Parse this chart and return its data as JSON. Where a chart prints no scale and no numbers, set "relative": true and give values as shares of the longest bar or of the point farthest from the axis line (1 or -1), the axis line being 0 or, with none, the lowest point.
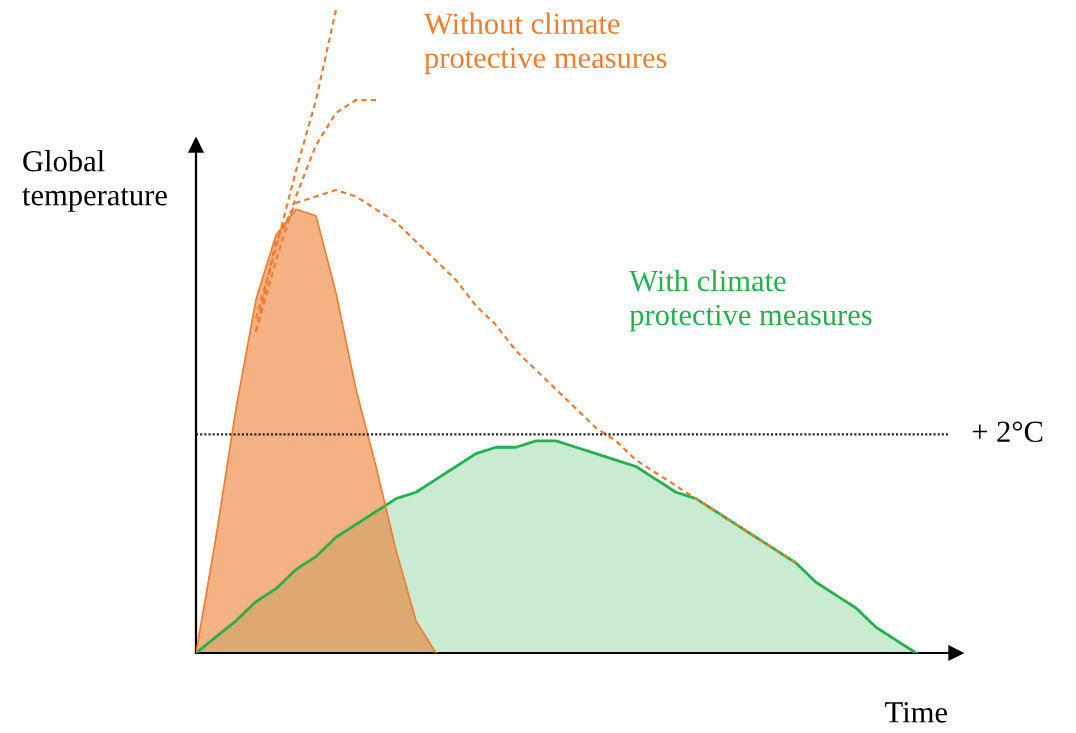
{
  "chart_data": {
    "type": "area",
    "relative": true,
    "xlabel": "Time",
    "ylabel": "Global\ntemperature",
    "categories": [
      null,
      null,
      null,
      null,
      null,
      null,
      null,
      null,
      null,
      null,
      null,
      null,
      null,
      null,
      null,
      null,
      null,
      null,
      null,
      null,
      null,
      null,
      null,
      null,
      null,
      null,
      null,
      null,
      null,
      null,
      null,
      null,
      null,
      null,
      null,
      null,
      null,
      null,
      null
    ],
    "series": [
      {
        "name": "With climate\nprotective measures",
        "color": "#22b14c",
        "values": [
          0,
          0.025,
          0.05,
          0.08,
          0.1,
          0.13,
          0.15,
          0.18,
          0.2,
          0.22,
          0.24,
          0.25,
          0.27,
          0.29,
          0.31,
          0.32,
          0.32,
          0.33,
          0.33,
          0.32,
          0.31,
          0.3,
          0.29,
          0.27,
          0.25,
          0.24,
          0.22,
          0.2,
          0.18,
          0.16,
          0.14,
          0.11,
          0.09,
          0.07,
          0.04,
          0.02,
          0,
          null,
          null
        ]
      },
      {
        "color": "#ed7d31",
        "values": [
          0,
          0.18,
          0.38,
          0.55,
          0.65,
          0.69,
          0.68,
          0.56,
          0.41,
          0.29,
          0.16,
          0.05,
          0,
          null,
          null,
          null,
          null,
          null,
          null,
          null,
          null,
          null,
          null,
          null,
          null,
          null,
          null,
          null,
          null,
          null,
          null,
          null,
          null,
          null,
          null,
          null,
          null,
          null,
          null
        ]
      },
      {
        "name": "Without climate\nprotective measures",
        "type": "line",
        "line_style": "dashed",
        "color": "#ed7d31",
        "values": [
          null,
          null,
          null,
          0.52,
          0.63,
          0.75,
          0.86,
          1.0,
          null,
          null,
          null,
          null,
          null,
          null,
          null,
          null,
          null,
          null,
          null,
          null,
          null,
          null,
          null,
          null,
          null,
          null,
          null,
          null,
          null,
          null,
          null,
          null,
          null,
          null,
          null,
          null,
          null,
          null,
          null
        ]
      },
      {
        "type": "line",
        "line_style": "dashed",
        "color": "#ed7d31",
        "values": [
          null,
          null,
          null,
          0.5,
          0.61,
          0.71,
          0.79,
          0.84,
          0.86,
          0.86,
          null,
          null,
          null,
          null,
          null,
          null,
          null,
          null,
          null,
          null,
          null,
          null,
          null,
          null,
          null,
          null,
          null,
          null,
          null,
          null,
          null,
          null,
          null,
          null,
          null,
          null,
          null,
          null,
          null
        ]
      },
      {
        "type": "line",
        "line_style": "dashed",
        "color": "#ed7d31",
        "values": [
          null,
          null,
          null,
          0.5,
          0.64,
          0.7,
          0.71,
          0.72,
          0.71,
          0.69,
          0.67,
          0.64,
          0.61,
          0.58,
          0.54,
          0.51,
          0.47,
          0.44,
          0.41,
          0.38,
          0.35,
          0.33,
          0.3,
          0.28,
          0.26,
          0.24,
          0.22,
          0.2,
          0.18,
          0.16,
          0.14,
          null,
          null,
          null,
          null,
          null,
          null,
          null,
          null
        ]
      }
    ],
    "ref_lines": [
      {
        "axis": "y",
        "value": 0.34,
        "label": "+ 2°C",
        "color": "#222222",
        "line_style": "dotted"
      }
    ],
    "legend": false
  }
}
